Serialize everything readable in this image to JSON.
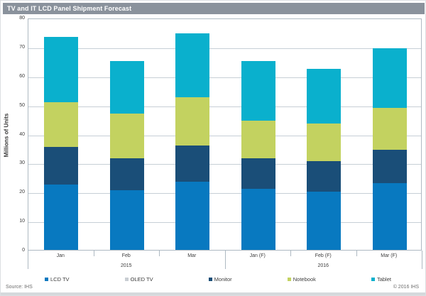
{
  "title_bar": {
    "title": "TV and IT LCD Panel Shipment Forecast",
    "bg_color": "#8a929c"
  },
  "footer": {
    "source": "Source: IHS",
    "copyright": "© 2016 IHS"
  },
  "chart_data": {
    "type": "bar",
    "stacked": true,
    "title": "TV and IT LCD Panel Shipment Forecast",
    "xlabel": "",
    "ylabel": "Millions of Units",
    "ylim": [
      0,
      80
    ],
    "ytick_step": 10,
    "yticks": [
      0,
      10,
      20,
      30,
      40,
      50,
      60,
      70,
      80
    ],
    "grid": true,
    "legend_position": "bottom",
    "categories": [
      "Jan",
      "Feb",
      "Mar",
      "Jan (F)",
      "Feb (F)",
      "Mar (F)"
    ],
    "group_labels": [
      {
        "label": "2015",
        "start": 0,
        "end": 2
      },
      {
        "label": "2016",
        "start": 3,
        "end": 5
      }
    ],
    "series": [
      {
        "name": "LCD TV",
        "color": "#0879c0",
        "values": [
          22.5,
          20.5,
          23.5,
          21.0,
          20.0,
          23.0
        ]
      },
      {
        "name": "OLED TV",
        "color": "#c9ced3",
        "values": [
          0,
          0,
          0,
          0,
          0,
          0
        ]
      },
      {
        "name": "Monitor",
        "color": "#1a4e78",
        "values": [
          13.0,
          11.0,
          12.5,
          10.5,
          10.5,
          11.5
        ]
      },
      {
        "name": "Notebook",
        "color": "#c3d260",
        "values": [
          15.5,
          15.5,
          16.5,
          13.0,
          13.0,
          14.5
        ]
      },
      {
        "name": "Tablet",
        "color": "#0ab0cd",
        "values": [
          22.5,
          18.0,
          22.0,
          20.5,
          19.0,
          20.5
        ]
      }
    ],
    "totals": [
      73.5,
      65.0,
      74.5,
      65.0,
      62.5,
      69.5
    ],
    "colors": {
      "gridline": "#c7cfd6",
      "plot_border": "#aeb9c2"
    }
  }
}
